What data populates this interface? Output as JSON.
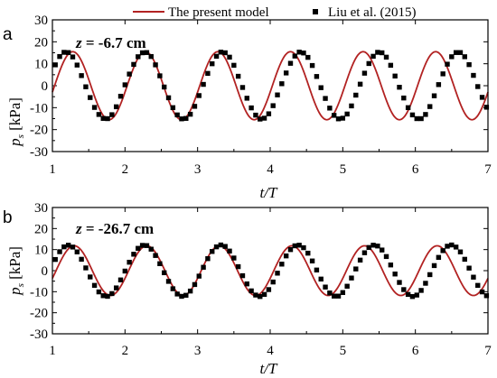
{
  "legend": {
    "model_label": "The present model",
    "data_label": "Liu et al. (2015)",
    "model_color": "#b22222",
    "data_color": "#000000"
  },
  "chart_data": [
    {
      "type": "line",
      "panel_label": "a",
      "annotation_var": "z",
      "annotation_value": " = -6.7 cm",
      "xlabel": "t/T",
      "ylabel_var": "p",
      "ylabel_sub": "s",
      "ylabel_unit": " [kPa]",
      "xlim": [
        1,
        7
      ],
      "ylim": [
        -30,
        30
      ],
      "xticks": [
        1,
        2,
        3,
        4,
        5,
        6,
        7
      ],
      "yticks": [
        30,
        20,
        10,
        0,
        -10,
        -20,
        -30
      ],
      "xtick_labels": [
        "1",
        "2",
        "3",
        "4",
        "5",
        "6",
        "7"
      ],
      "ytick_labels": [
        "30",
        "20",
        "10",
        "0",
        "-10",
        "-20",
        "-30"
      ],
      "grid": false,
      "series": [
        {
          "name": "The present model",
          "kind": "line",
          "amplitude": 15.5,
          "peak_phase": 0.28,
          "period": 1,
          "x": [
            1.0,
            1.25,
            1.5,
            1.75,
            2.0,
            2.25,
            2.5,
            2.75,
            3.0,
            3.25,
            3.5,
            3.75,
            4.0,
            4.25,
            4.5,
            4.75,
            5.0,
            5.25,
            5.5,
            5.75,
            6.0,
            6.25,
            6.5,
            6.75,
            7.0
          ],
          "y": [
            0.0,
            15.5,
            0,
            -15.5,
            0,
            15.5,
            0,
            -15.5,
            0,
            15.5,
            0,
            -15.5,
            0,
            15.5,
            0,
            -15.5,
            0,
            15.5,
            0,
            -15.5,
            0,
            15.5,
            0,
            -15.5,
            0
          ]
        },
        {
          "name": "Liu et al. (2015)",
          "kind": "markers",
          "x": [
            1.04,
            1.1,
            1.16,
            1.22,
            1.28,
            1.34,
            1.4,
            1.46,
            1.52,
            1.58,
            1.64,
            1.7,
            1.76,
            1.82,
            1.88,
            1.94,
            2.0,
            2.06,
            2.12,
            2.18,
            2.24,
            2.3,
            2.36,
            2.42,
            2.48,
            2.54,
            2.6,
            2.66,
            2.72,
            2.78,
            2.84,
            2.9,
            2.96,
            3.02,
            3.08,
            3.14,
            3.2,
            3.26,
            3.32,
            3.38,
            3.44,
            3.5,
            3.56,
            3.62,
            3.68,
            3.74,
            3.8,
            3.86,
            3.92,
            3.98,
            4.04,
            4.1,
            4.16,
            4.22,
            4.28,
            4.34,
            4.4,
            4.46,
            4.52,
            4.58,
            4.64,
            4.7,
            4.76,
            4.82,
            4.88,
            4.94,
            5.0,
            5.06,
            5.12,
            5.18,
            5.24,
            5.3,
            5.36,
            5.42,
            5.48,
            5.54,
            5.6,
            5.66,
            5.72,
            5.78,
            5.84,
            5.9,
            5.96,
            6.02,
            6.08,
            6.14,
            6.2,
            6.26,
            6.32,
            6.38,
            6.44,
            6.5,
            6.56,
            6.62,
            6.68,
            6.74,
            6.8,
            6.86,
            6.92,
            6.98
          ],
          "y": [
            9.5,
            13.3,
            15.2,
            15.1,
            13.1,
            9.4,
            4.6,
            -0.5,
            -5.4,
            -9.9,
            -13.1,
            -14.9,
            -15.0,
            -13.2,
            -9.6,
            -4.8,
            0.4,
            5.3,
            9.7,
            13.2,
            15.0,
            15.1,
            13.3,
            9.5,
            4.5,
            -0.6,
            -5.5,
            -10.0,
            -13.3,
            -15.1,
            -14.9,
            -13.0,
            -9.4,
            -4.5,
            0.6,
            5.6,
            10.0,
            13.4,
            15.3,
            15.0,
            13.0,
            9.3,
            4.3,
            -0.8,
            -5.7,
            -10.1,
            -13.4,
            -15.2,
            -14.8,
            -12.8,
            -9.1,
            -4.2,
            0.9,
            5.8,
            10.2,
            13.5,
            15.3,
            14.9,
            12.9,
            9.2,
            4.2,
            -0.9,
            -5.8,
            -10.2,
            -13.5,
            -15.1,
            -14.8,
            -12.9,
            -9.2,
            -4.3,
            0.7,
            5.7,
            10.1,
            13.4,
            15.2,
            15.0,
            13.0,
            9.3,
            4.4,
            -0.7,
            -5.6,
            -10.0,
            -13.3,
            -15.0,
            -15.0,
            -13.1,
            -9.5,
            -4.6,
            0.5,
            5.4,
            9.8,
            13.2,
            15.1,
            15.1,
            13.2,
            9.6,
            4.7,
            -0.4,
            -5.3,
            -9.8
          ]
        }
      ]
    },
    {
      "type": "line",
      "panel_label": "b",
      "annotation_var": "z",
      "annotation_value": " = -26.7 cm",
      "xlabel": "t/T",
      "ylabel_var": "p",
      "ylabel_sub": "s",
      "ylabel_unit": " [kPa]",
      "xlim": [
        1,
        7
      ],
      "ylim": [
        -30,
        30
      ],
      "xticks": [
        1,
        2,
        3,
        4,
        5,
        6,
        7
      ],
      "yticks": [
        30,
        20,
        10,
        0,
        -10,
        -20,
        -30
      ],
      "xtick_labels": [
        "1",
        "2",
        "3",
        "4",
        "5",
        "6",
        "7"
      ],
      "ytick_labels": [
        "30",
        "20",
        "10",
        "0",
        "-10",
        "-20",
        "-30"
      ],
      "grid": false,
      "series": [
        {
          "name": "The present model",
          "kind": "line",
          "amplitude": 11.8,
          "peak_phase": 0.3,
          "period": 1,
          "x": [
            1.05,
            1.3,
            1.55,
            1.8,
            2.05,
            2.3,
            2.55,
            2.8,
            3.05,
            3.3,
            3.55,
            3.8,
            4.05,
            4.3,
            4.55,
            4.8,
            5.05,
            5.3,
            5.55,
            5.8,
            6.05,
            6.3,
            6.55,
            6.8
          ],
          "y": [
            0,
            11.8,
            0,
            -11.8,
            0,
            11.8,
            0,
            -11.8,
            0,
            11.8,
            0,
            -11.8,
            0,
            11.8,
            0,
            -11.8,
            0,
            11.8,
            0,
            -11.8,
            0,
            11.8,
            0,
            -11.8
          ]
        },
        {
          "name": "Liu et al. (2015)",
          "kind": "markers",
          "x": [
            1.04,
            1.1,
            1.16,
            1.22,
            1.28,
            1.34,
            1.4,
            1.46,
            1.52,
            1.58,
            1.64,
            1.7,
            1.76,
            1.82,
            1.88,
            1.94,
            2.0,
            2.06,
            2.12,
            2.18,
            2.24,
            2.3,
            2.36,
            2.42,
            2.48,
            2.54,
            2.6,
            2.66,
            2.72,
            2.78,
            2.84,
            2.9,
            2.96,
            3.02,
            3.08,
            3.14,
            3.2,
            3.26,
            3.32,
            3.38,
            3.44,
            3.5,
            3.56,
            3.62,
            3.68,
            3.74,
            3.8,
            3.86,
            3.92,
            3.98,
            4.04,
            4.1,
            4.16,
            4.22,
            4.28,
            4.34,
            4.4,
            4.46,
            4.52,
            4.58,
            4.64,
            4.7,
            4.76,
            4.82,
            4.88,
            4.94,
            5.0,
            5.06,
            5.12,
            5.18,
            5.24,
            5.3,
            5.36,
            5.42,
            5.48,
            5.54,
            5.6,
            5.66,
            5.72,
            5.78,
            5.84,
            5.9,
            5.96,
            6.02,
            6.08,
            6.14,
            6.2,
            6.26,
            6.32,
            6.38,
            6.44,
            6.5,
            6.56,
            6.62,
            6.68,
            6.74,
            6.8,
            6.86,
            6.92,
            6.98
          ],
          "y": [
            5.3,
            9.0,
            11.3,
            12.1,
            11.2,
            8.9,
            5.4,
            1.3,
            -3.0,
            -7.0,
            -10.1,
            -11.9,
            -12.2,
            -10.9,
            -8.2,
            -4.4,
            -0.2,
            4.0,
            7.8,
            10.6,
            12.0,
            11.9,
            10.2,
            7.2,
            3.3,
            -1.0,
            -5.1,
            -8.6,
            -11.1,
            -12.2,
            -11.7,
            -9.7,
            -6.6,
            -2.6,
            1.6,
            5.7,
            9.1,
            11.3,
            12.2,
            11.5,
            9.3,
            6.0,
            1.9,
            -2.4,
            -6.3,
            -9.6,
            -11.6,
            -12.3,
            -11.3,
            -9.0,
            -5.4,
            -1.2,
            3.1,
            7.0,
            10.0,
            11.8,
            12.1,
            10.9,
            8.3,
            4.6,
            0.3,
            -4.0,
            -7.8,
            -10.6,
            -12.1,
            -12.1,
            -10.4,
            -7.4,
            -3.5,
            0.8,
            5.0,
            8.5,
            11.0,
            12.1,
            11.7,
            9.8,
            6.7,
            2.7,
            -1.6,
            -5.6,
            -9.0,
            -11.3,
            -12.3,
            -11.6,
            -9.4,
            -6.0,
            -1.9,
            2.4,
            6.3,
            9.5,
            11.6,
            12.2,
            11.2,
            8.9,
            5.4,
            1.2,
            -3.1,
            -7.0,
            -10.1,
            -11.9
          ]
        }
      ]
    }
  ]
}
